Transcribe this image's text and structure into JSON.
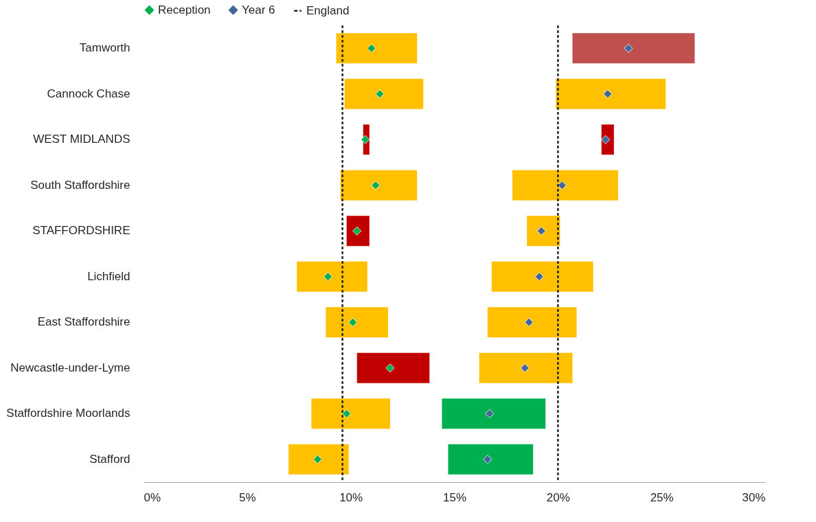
{
  "chart_data": {
    "type": "bar",
    "orientation": "horizontal",
    "categories": [
      "Tamworth",
      "Cannock Chase",
      "WEST MIDLANDS",
      "South Staffordshire",
      "STAFFORDSHIRE",
      "Lichfield",
      "East Staffordshire",
      "Newcastle-under-Lyme",
      "Staffordshire Moorlands",
      "Stafford"
    ],
    "series": [
      {
        "base": [
          9.3,
          9.7,
          10.6,
          9.5,
          9.8,
          7.4,
          8.8,
          10.3,
          8.1,
          7.0
        ],
        "values": [
          3.9,
          3.8,
          0.3,
          3.7,
          1.1,
          3.4,
          3.0,
          3.5,
          3.8,
          2.9
        ],
        "colors": [
          "#ffc000",
          "#ffc000",
          "#c00000",
          "#ffc000",
          "#c00000",
          "#ffc000",
          "#ffc000",
          "#c00000",
          "#ffc000",
          "#ffc000"
        ]
      },
      {
        "base": [
          20.7,
          19.9,
          22.1,
          17.8,
          18.5,
          16.8,
          16.6,
          16.2,
          14.4,
          14.7
        ],
        "values": [
          5.9,
          5.3,
          0.6,
          5.1,
          1.6,
          4.9,
          4.3,
          4.5,
          5.0,
          4.1
        ],
        "colors": [
          "#c0504d",
          "#ffc000",
          "#c00000",
          "#ffc000",
          "#ffc000",
          "#ffc000",
          "#ffc000",
          "#ffc000",
          "#00b050",
          "#00b050"
        ]
      },
      {
        "type": "scatter",
        "name": "Reception",
        "color": "#00b050",
        "values": [
          11.0,
          11.4,
          10.7,
          11.2,
          10.3,
          8.9,
          10.1,
          11.9,
          9.8,
          8.4
        ]
      },
      {
        "type": "scatter",
        "name": "Year 6",
        "color": "#44679b",
        "values": [
          23.4,
          22.4,
          22.3,
          20.2,
          19.2,
          19.1,
          18.6,
          18.4,
          16.7,
          16.6
        ]
      }
    ],
    "ref_lines": [
      {
        "axis": "x",
        "value": 9.6,
        "label": "England",
        "color": "#262626",
        "line_style": "dashed"
      },
      {
        "axis": "x",
        "value": 20.0,
        "color": "#262626",
        "line_style": "dashed"
      }
    ],
    "marker": "diamond",
    "xlim": [
      0,
      30
    ],
    "xticks": [
      {
        "value": 0,
        "label": "0%"
      },
      {
        "value": 5,
        "label": "5%"
      },
      {
        "value": 10,
        "label": "10%"
      },
      {
        "value": 15,
        "label": "15%"
      },
      {
        "value": 20,
        "label": "20%"
      },
      {
        "value": 25,
        "label": "25%"
      },
      {
        "value": 30,
        "label": "30%"
      }
    ],
    "grid": false,
    "legend": "top"
  }
}
